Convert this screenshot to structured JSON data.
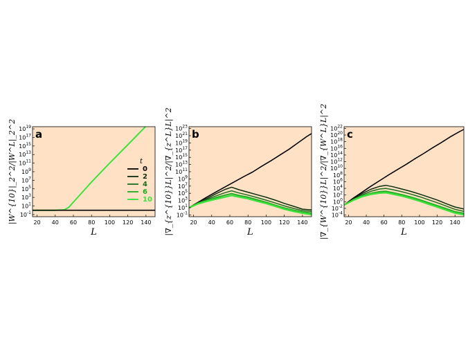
{
  "colors": {
    "background": "#ffe2c6",
    "t0": "#000000",
    "t2": "#0c2c0c",
    "t4": "#1e6a1e",
    "t6": "#22aa22",
    "t10": "#3de03d"
  },
  "chart_data": [
    {
      "type": "line",
      "panel": "a",
      "xlabel": "L",
      "ylabel": "|W^{10}|_2^2/|W^L|_2^2",
      "xlim": [
        15,
        150
      ],
      "ylim_log10": [
        -1.5,
        19.5
      ],
      "y_scale": "log",
      "x_ticks": [
        "20",
        "40",
        "60",
        "80",
        "100",
        "120",
        "140"
      ],
      "y_ticks": [
        {
          "base": "10",
          "exp": "-1"
        },
        {
          "base": "10",
          "exp": "1"
        },
        {
          "base": "10",
          "exp": "3"
        },
        {
          "base": "10",
          "exp": "5"
        },
        {
          "base": "10",
          "exp": "7"
        },
        {
          "base": "10",
          "exp": "9"
        },
        {
          "base": "10",
          "exp": "11"
        },
        {
          "base": "10",
          "exp": "13"
        },
        {
          "base": "10",
          "exp": "15"
        },
        {
          "base": "10",
          "exp": "17"
        },
        {
          "base": "10",
          "exp": "19"
        }
      ],
      "legend": {
        "title": "t",
        "position": "right",
        "entries": [
          {
            "label": "0",
            "color": "#000000"
          },
          {
            "label": "2",
            "color": "#0c2c0c"
          },
          {
            "label": "4",
            "color": "#1e6a1e"
          },
          {
            "label": "6",
            "color": "#22aa22"
          },
          {
            "label": "10",
            "color": "#3de03d"
          }
        ]
      },
      "series": [
        {
          "color": "#3de03d",
          "width": 2.0,
          "x": [
            15,
            40,
            50,
            55,
            60,
            80,
            100,
            120,
            150
          ],
          "y_log10": [
            0,
            0,
            0.1,
            0.7,
            1.9,
            6.6,
            11.0,
            15.3,
            21.8
          ]
        },
        {
          "color": "#000000",
          "width": 1.6,
          "x": [
            15,
            150
          ],
          "y_log10": [
            0,
            0
          ]
        }
      ]
    },
    {
      "type": "line",
      "panel": "b",
      "xlabel": "L",
      "ylabel": "|∇_{z^{10}}L|^2/|∇_{z^L}L|^2",
      "xlim": [
        15,
        150
      ],
      "ylim_log10": [
        -1.5,
        23.5
      ],
      "y_scale": "log",
      "x_ticks": [
        "20",
        "40",
        "60",
        "80",
        "100",
        "120",
        "140"
      ],
      "y_ticks": [
        {
          "base": "10",
          "exp": "-1"
        },
        {
          "base": "10",
          "exp": "1"
        },
        {
          "base": "10",
          "exp": "3"
        },
        {
          "base": "10",
          "exp": "5"
        },
        {
          "base": "10",
          "exp": "7"
        },
        {
          "base": "10",
          "exp": "9"
        },
        {
          "base": "10",
          "exp": "11"
        },
        {
          "base": "10",
          "exp": "13"
        },
        {
          "base": "10",
          "exp": "15"
        },
        {
          "base": "10",
          "exp": "17"
        },
        {
          "base": "10",
          "exp": "19"
        },
        {
          "base": "10",
          "exp": "21"
        },
        {
          "base": "10",
          "exp": "23"
        }
      ],
      "series": [
        {
          "color": "#000000",
          "width": 1.6,
          "x": [
            15,
            25,
            35,
            45,
            55,
            65,
            75,
            85,
            95,
            105,
            115,
            125,
            135,
            145,
            150
          ],
          "y_log10": [
            1.0,
            2.5,
            4.0,
            5.4,
            6.8,
            8.2,
            9.6,
            10.9,
            12.5,
            14.0,
            15.6,
            17.2,
            19.0,
            20.8,
            21.6
          ]
        },
        {
          "color": "#0c2c0c",
          "width": 1.5,
          "x": [
            15,
            25,
            35,
            45,
            55,
            62,
            70,
            80,
            90,
            100,
            110,
            120,
            130,
            140,
            150
          ],
          "y_log10": [
            1.0,
            2.4,
            3.6,
            4.9,
            6.1,
            6.7,
            6.0,
            5.3,
            4.6,
            3.9,
            3.1,
            2.2,
            1.4,
            0.6,
            0.4
          ]
        },
        {
          "color": "#1e6a1e",
          "width": 1.5,
          "x": [
            15,
            25,
            35,
            45,
            55,
            62,
            70,
            80,
            90,
            100,
            110,
            120,
            130,
            140,
            150
          ],
          "y_log10": [
            1.0,
            2.3,
            3.3,
            4.3,
            5.2,
            5.7,
            5.1,
            4.5,
            3.8,
            3.1,
            2.3,
            1.5,
            0.8,
            0.2,
            0.0
          ]
        },
        {
          "color": "#22aa22",
          "width": 2.0,
          "x": [
            15,
            25,
            35,
            45,
            55,
            62,
            70,
            80,
            90,
            100,
            110,
            120,
            130,
            140,
            150
          ],
          "y_log10": [
            1.0,
            2.2,
            3.0,
            3.8,
            4.5,
            4.9,
            4.4,
            3.9,
            3.2,
            2.5,
            1.7,
            0.9,
            0.3,
            -0.2,
            -0.5
          ]
        },
        {
          "color": "#3de03d",
          "width": 2.4,
          "x": [
            15,
            25,
            35,
            45,
            55,
            62,
            70,
            80,
            90,
            100,
            110,
            120,
            130,
            140,
            150
          ],
          "y_log10": [
            1.0,
            2.1,
            2.8,
            3.4,
            4.0,
            4.4,
            4.0,
            3.5,
            2.8,
            2.2,
            1.4,
            0.6,
            0.0,
            -0.5,
            -0.9
          ]
        }
      ]
    },
    {
      "type": "line",
      "panel": "c",
      "xlabel": "L",
      "ylabel": "|∇_{W^{10}}L|^2/|∇_{W^L}L|^2",
      "xlim": [
        15,
        150
      ],
      "ylim_log10": [
        -4.5,
        22.5
      ],
      "y_scale": "log",
      "x_ticks": [
        "20",
        "40",
        "60",
        "80",
        "100",
        "120",
        "140"
      ],
      "y_ticks": [
        {
          "base": "10",
          "exp": "-4"
        },
        {
          "base": "10",
          "exp": "-2"
        },
        {
          "base": "10",
          "exp": "0"
        },
        {
          "base": "10",
          "exp": "2"
        },
        {
          "base": "10",
          "exp": "4"
        },
        {
          "base": "10",
          "exp": "6"
        },
        {
          "base": "10",
          "exp": "8"
        },
        {
          "base": "10",
          "exp": "10"
        },
        {
          "base": "10",
          "exp": "12"
        },
        {
          "base": "10",
          "exp": "14"
        },
        {
          "base": "10",
          "exp": "16"
        },
        {
          "base": "10",
          "exp": "18"
        },
        {
          "base": "10",
          "exp": "20"
        },
        {
          "base": "10",
          "exp": "22"
        }
      ],
      "series": [
        {
          "color": "#000000",
          "width": 1.6,
          "x": [
            15,
            25,
            35,
            45,
            55,
            65,
            75,
            85,
            95,
            105,
            115,
            125,
            135,
            145,
            150
          ],
          "y_log10": [
            -1.0,
            1.0,
            2.8,
            4.6,
            6.3,
            8.0,
            9.6,
            11.2,
            12.9,
            14.5,
            16.2,
            17.8,
            19.5,
            21.0,
            21.7
          ]
        },
        {
          "color": "#0c2c0c",
          "width": 1.5,
          "x": [
            15,
            25,
            35,
            45,
            55,
            62,
            70,
            80,
            90,
            100,
            110,
            120,
            130,
            140,
            150
          ],
          "y_log10": [
            -1.0,
            0.8,
            2.4,
            3.7,
            4.6,
            4.9,
            4.5,
            3.8,
            3.1,
            2.3,
            1.4,
            0.5,
            -0.6,
            -1.6,
            -2.2
          ]
        },
        {
          "color": "#1e6a1e",
          "width": 1.5,
          "x": [
            15,
            25,
            35,
            45,
            55,
            62,
            70,
            80,
            90,
            100,
            110,
            120,
            130,
            140,
            150
          ],
          "y_log10": [
            -1.0,
            0.6,
            2.0,
            3.1,
            3.8,
            4.0,
            3.6,
            3.0,
            2.3,
            1.5,
            0.6,
            -0.3,
            -1.3,
            -2.3,
            -2.9
          ]
        },
        {
          "color": "#22aa22",
          "width": 2.0,
          "x": [
            15,
            25,
            35,
            45,
            55,
            62,
            70,
            80,
            90,
            100,
            110,
            120,
            130,
            140,
            150
          ],
          "y_log10": [
            -1.0,
            0.5,
            1.7,
            2.5,
            3.0,
            3.1,
            2.7,
            2.1,
            1.4,
            0.6,
            -0.3,
            -1.2,
            -2.1,
            -3.0,
            -3.5
          ]
        },
        {
          "color": "#3de03d",
          "width": 2.4,
          "x": [
            15,
            25,
            35,
            45,
            55,
            62,
            70,
            80,
            90,
            100,
            110,
            120,
            130,
            140,
            150
          ],
          "y_log10": [
            -1.0,
            0.4,
            1.5,
            2.2,
            2.6,
            2.7,
            2.3,
            1.7,
            1.0,
            0.2,
            -0.7,
            -1.6,
            -2.5,
            -3.4,
            -3.9
          ]
        }
      ]
    }
  ]
}
